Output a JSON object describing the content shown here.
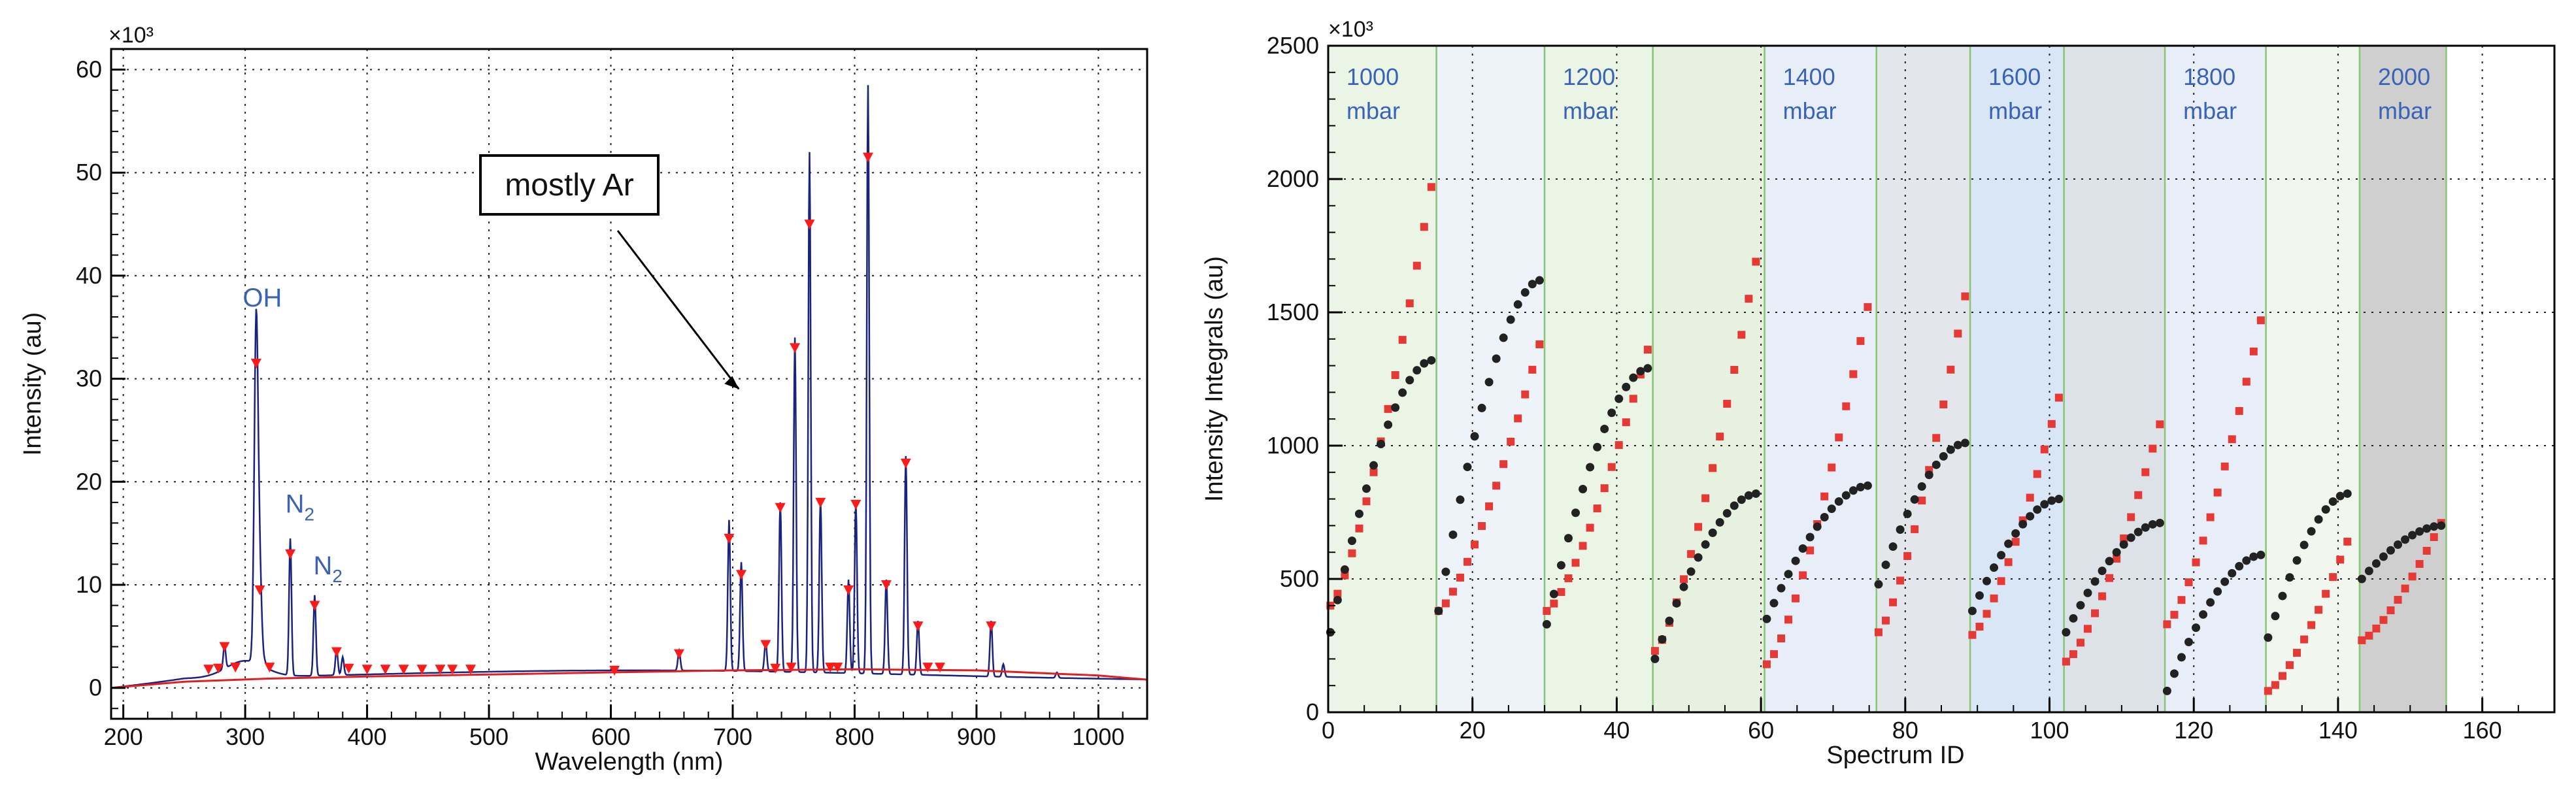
{
  "chart_data": [
    {
      "type": "line",
      "title": "",
      "xlabel": "Wavelength (nm)",
      "ylabel": "Intensity (au)",
      "y_exponent": "×10³",
      "xlim": [
        190,
        1040
      ],
      "ylim": [
        -3,
        62
      ],
      "x_ticks": [
        200,
        300,
        400,
        500,
        600,
        700,
        800,
        900,
        1000
      ],
      "y_ticks": [
        0,
        10,
        20,
        30,
        40,
        50,
        60
      ],
      "grid": true,
      "series": [
        {
          "name": "spectrum",
          "color": "#1a237e",
          "peaks": [
            {
              "x": 283,
              "y": 4.2
            },
            {
              "x": 309,
              "y": 35.5
            },
            {
              "x": 312,
              "y": 10.5
            },
            {
              "x": 316,
              "y": 2.5
            },
            {
              "x": 337,
              "y": 14.5
            },
            {
              "x": 357,
              "y": 9.0
            },
            {
              "x": 375,
              "y": 3.8
            },
            {
              "x": 380,
              "y": 3.0
            },
            {
              "x": 656,
              "y": 3.6
            },
            {
              "x": 697,
              "y": 16.3
            },
            {
              "x": 707,
              "y": 12.2
            },
            {
              "x": 727,
              "y": 4.5
            },
            {
              "x": 739,
              "y": 18.0
            },
            {
              "x": 751,
              "y": 34.0
            },
            {
              "x": 763,
              "y": 52.0
            },
            {
              "x": 772,
              "y": 18.3
            },
            {
              "x": 795,
              "y": 10.5
            },
            {
              "x": 801,
              "y": 18.0
            },
            {
              "x": 811,
              "y": 58.5
            },
            {
              "x": 826,
              "y": 10.5
            },
            {
              "x": 842,
              "y": 22.5
            },
            {
              "x": 852,
              "y": 6.5
            },
            {
              "x": 912,
              "y": 6.5
            },
            {
              "x": 922,
              "y": 2.3
            },
            {
              "x": 966,
              "y": 1.5
            }
          ]
        },
        {
          "name": "background fit",
          "color": "#e02020",
          "points": [
            [
              190,
              0.0
            ],
            [
              250,
              0.6
            ],
            [
              320,
              0.9
            ],
            [
              400,
              1.1
            ],
            [
              500,
              1.3
            ],
            [
              600,
              1.5
            ],
            [
              700,
              1.7
            ],
            [
              800,
              1.8
            ],
            [
              900,
              1.7
            ],
            [
              1000,
              1.2
            ],
            [
              1040,
              0.8
            ]
          ]
        },
        {
          "name": "peak markers",
          "color": "#ff1a1a",
          "points": [
            [
              283,
              4.0
            ],
            [
              309,
              31.5
            ],
            [
              312,
              9.5
            ],
            [
              337,
              13.0
            ],
            [
              357,
              8.0
            ],
            [
              375,
              3.5
            ],
            [
              656,
              3.3
            ],
            [
              697,
              14.5
            ],
            [
              707,
              11.0
            ],
            [
              727,
              4.2
            ],
            [
              739,
              17.5
            ],
            [
              751,
              33.0
            ],
            [
              763,
              45.0
            ],
            [
              772,
              18.0
            ],
            [
              795,
              9.5
            ],
            [
              801,
              17.8
            ],
            [
              811,
              51.5
            ],
            [
              826,
              10.0
            ],
            [
              842,
              21.8
            ],
            [
              852,
              6.0
            ],
            [
              912,
              6.0
            ],
            [
              270,
              1.8
            ],
            [
              278,
              1.9
            ],
            [
              292,
              2.0
            ],
            [
              320,
              2.0
            ],
            [
              385,
              1.9
            ],
            [
              400,
              1.8
            ],
            [
              415,
              1.8
            ],
            [
              430,
              1.8
            ],
            [
              445,
              1.8
            ],
            [
              460,
              1.8
            ],
            [
              470,
              1.8
            ],
            [
              485,
              1.8
            ],
            [
              603,
              1.7
            ],
            [
              735,
              1.9
            ],
            [
              748,
              2.0
            ],
            [
              780,
              2.0
            ],
            [
              786,
              2.0
            ],
            [
              860,
              2.0
            ],
            [
              870,
              2.0
            ]
          ]
        }
      ],
      "annotations": [
        {
          "text": "OH",
          "x": 298,
          "y": 37
        },
        {
          "text": "N",
          "sub": "2",
          "x": 333,
          "y": 17
        },
        {
          "text": "N",
          "sub": "2",
          "x": 356,
          "y": 11
        }
      ],
      "callout": {
        "text": "mostly Ar",
        "arrow_to": [
          705,
          29
        ]
      }
    },
    {
      "type": "scatter",
      "title": "",
      "xlabel": "Spectrum ID",
      "ylabel": "Intensity Integrals (au)",
      "y_exponent": "×10³",
      "xlim": [
        0,
        170
      ],
      "ylim": [
        0,
        2500
      ],
      "x_ticks": [
        0,
        20,
        40,
        60,
        80,
        100,
        120,
        140,
        160
      ],
      "y_ticks": [
        0,
        500,
        1000,
        1500,
        2000,
        2500
      ],
      "grid": true,
      "pressure_bands": [
        {
          "label": "1000",
          "unit": "mbar",
          "start": 0,
          "end": 15,
          "color": "#eaf5e6"
        },
        {
          "label": "1200",
          "unit": "mbar",
          "start": 30,
          "end": 45,
          "color": "#eaf5e6"
        },
        {
          "label": "1400",
          "unit": "mbar",
          "start": 60.5,
          "end": 76,
          "color": "#e8eef8"
        },
        {
          "label": "1600",
          "unit": "mbar",
          "start": 89,
          "end": 102,
          "color": "#d9e6f5"
        },
        {
          "label": "1800",
          "unit": "mbar",
          "start": 116,
          "end": 130,
          "color": "#e8eef8"
        },
        {
          "label": "2000",
          "unit": "mbar",
          "start": 143,
          "end": 155,
          "color": "#cfcfcf"
        }
      ],
      "other_bands": [
        {
          "start": 15,
          "end": 30,
          "color": "#eef2f9"
        },
        {
          "start": 45,
          "end": 60.5,
          "color": "#e6f2df"
        },
        {
          "start": 76,
          "end": 89,
          "color": "#e3e6ea"
        },
        {
          "start": 102,
          "end": 116,
          "color": "#dde1e8"
        },
        {
          "start": 130,
          "end": 143,
          "color": "#f1f7ef"
        }
      ],
      "series": [
        {
          "name": "red squares",
          "color": "#e53935",
          "marker": "square",
          "groups": [
            {
              "start": 0,
              "n": 15,
              "y0": 400,
              "y1": 1970
            },
            {
              "start": 15,
              "n": 15,
              "y0": 380,
              "y1": 1380
            },
            {
              "start": 30,
              "n": 15,
              "y0": 380,
              "y1": 1360
            },
            {
              "start": 45,
              "n": 15,
              "y0": 230,
              "y1": 1690
            },
            {
              "start": 60.5,
              "n": 15,
              "y0": 180,
              "y1": 1520
            },
            {
              "start": 76,
              "n": 13,
              "y0": 300,
              "y1": 1560
            },
            {
              "start": 89,
              "n": 13,
              "y0": 290,
              "y1": 1180
            },
            {
              "start": 102,
              "n": 14,
              "y0": 190,
              "y1": 1080
            },
            {
              "start": 116,
              "n": 14,
              "y0": 330,
              "y1": 1470
            },
            {
              "start": 130,
              "n": 12,
              "y0": 80,
              "y1": 640
            },
            {
              "start": 143,
              "n": 12,
              "y0": 270,
              "y1": 710
            }
          ]
        },
        {
          "name": "black circles",
          "color": "#222222",
          "marker": "circle",
          "groups": [
            {
              "start": 0,
              "n": 15,
              "y0": 300,
              "y1": 1320
            },
            {
              "start": 15,
              "n": 15,
              "y0": 380,
              "y1": 1620
            },
            {
              "start": 30,
              "n": 15,
              "y0": 330,
              "y1": 1290
            },
            {
              "start": 45,
              "n": 15,
              "y0": 200,
              "y1": 820
            },
            {
              "start": 60.5,
              "n": 15,
              "y0": 350,
              "y1": 850
            },
            {
              "start": 76,
              "n": 13,
              "y0": 480,
              "y1": 1010
            },
            {
              "start": 89,
              "n": 13,
              "y0": 380,
              "y1": 800
            },
            {
              "start": 102,
              "n": 14,
              "y0": 300,
              "y1": 710
            },
            {
              "start": 116,
              "n": 14,
              "y0": 80,
              "y1": 590
            },
            {
              "start": 130,
              "n": 12,
              "y0": 280,
              "y1": 820
            },
            {
              "start": 143,
              "n": 12,
              "y0": 500,
              "y1": 700
            }
          ]
        }
      ]
    }
  ]
}
